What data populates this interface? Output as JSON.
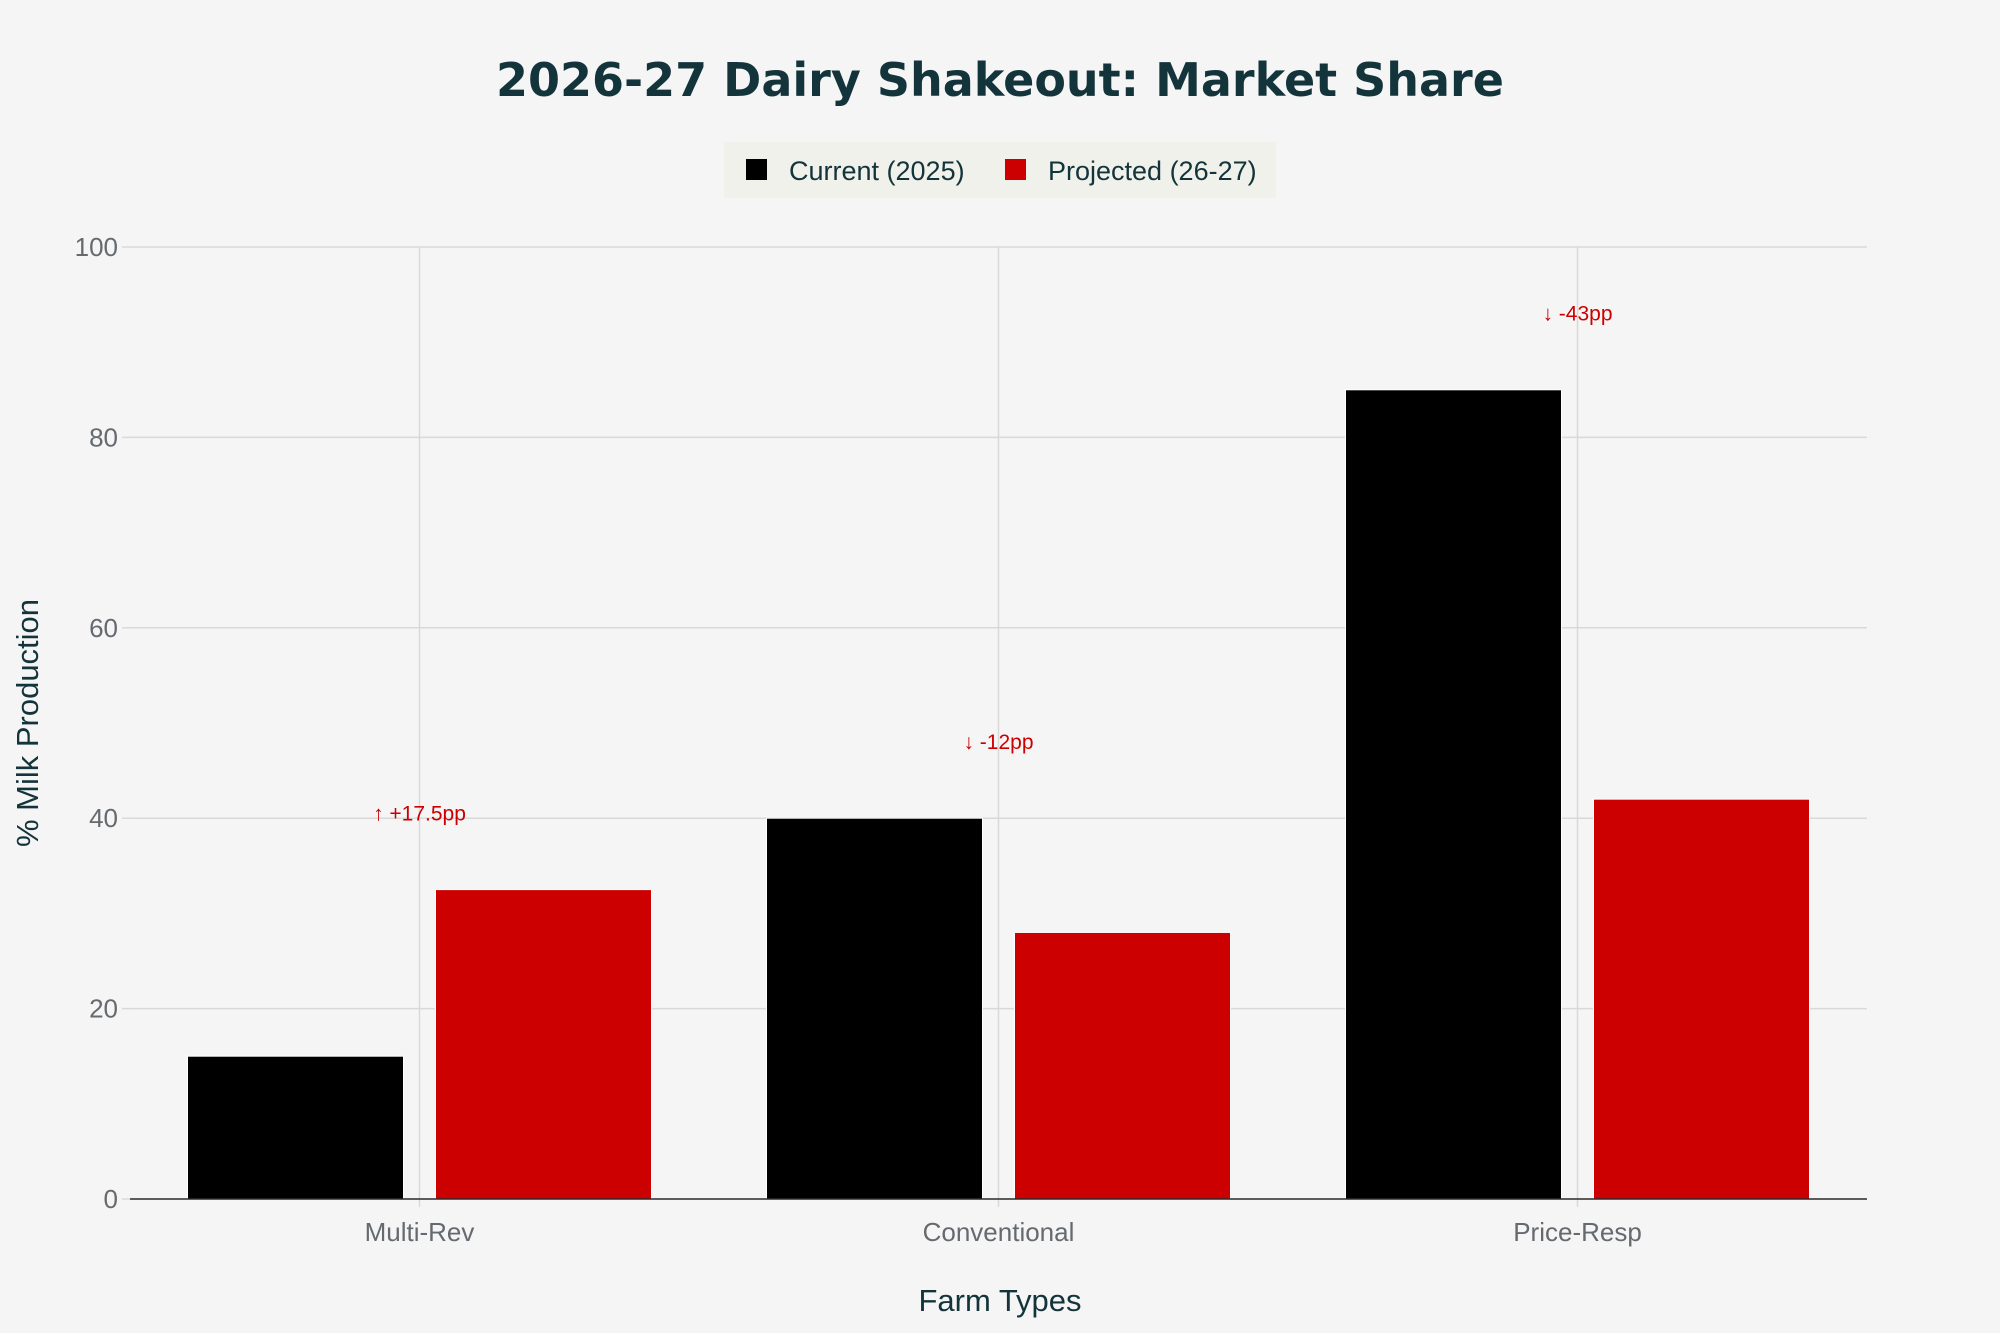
{
  "chart_data": {
    "type": "bar",
    "title": "2026-27 Dairy Shakeout: Market Share",
    "xlabel": "Farm Types",
    "ylabel": "% Milk Production",
    "categories": [
      "Multi-Rev",
      "Conventional",
      "Price-Resp"
    ],
    "series": [
      {
        "name": "Current (2025)",
        "values": [
          15,
          40,
          85
        ],
        "color": "#000000"
      },
      {
        "name": "Projected (26-27)",
        "values": [
          32.5,
          28,
          42
        ],
        "color": "#cc0000"
      }
    ],
    "ylim": [
      0,
      100
    ],
    "yticks": [
      "0",
      "20",
      "40",
      "60",
      "80",
      "100"
    ],
    "legend_position": "top-center",
    "grid": true,
    "annotations": [
      {
        "category": "Multi-Rev",
        "text": "↑ +17.5pp",
        "y": 40.5,
        "color": "#cc0000"
      },
      {
        "category": "Conventional",
        "text": "↓ -12pp",
        "y": 48,
        "color": "#cc0000"
      },
      {
        "category": "Price-Resp",
        "text": "↓ -43pp",
        "y": 93,
        "color": "#cc0000"
      }
    ]
  },
  "colors": {
    "background": "#f5f5f5",
    "legend_background": "#f0f1ea",
    "grid": "#d9d9d9",
    "axis_line": "#2a2a2a"
  }
}
